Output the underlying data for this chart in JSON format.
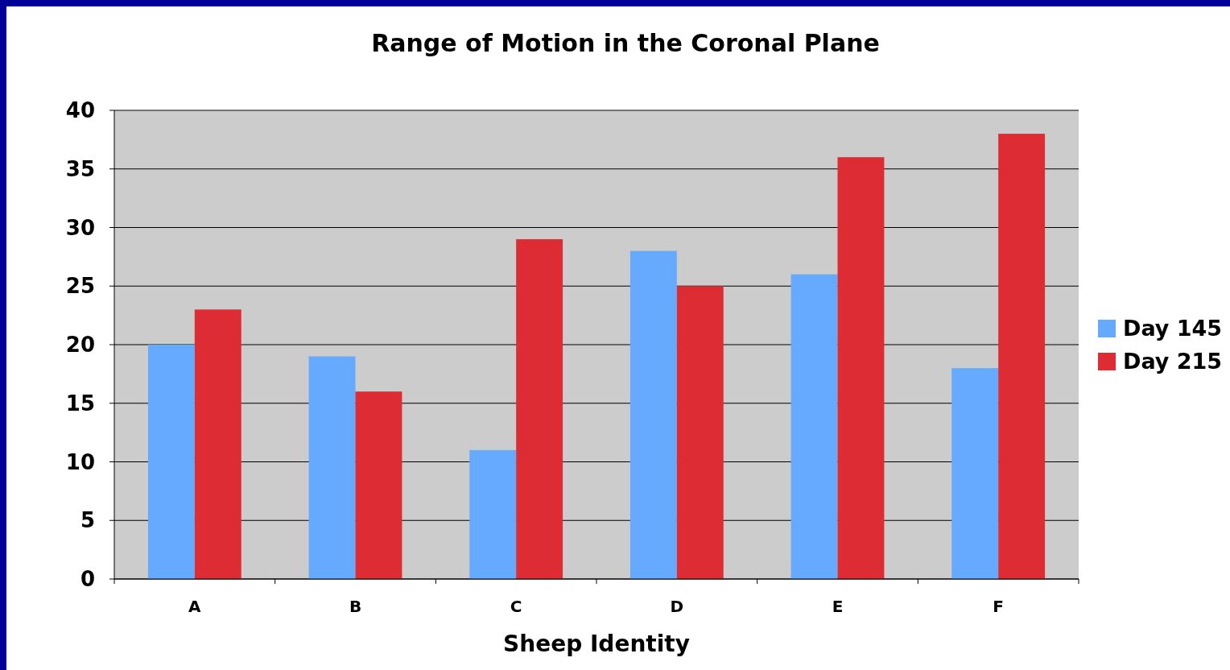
{
  "chart_data": {
    "type": "bar",
    "title": "Range of Motion in the Coronal Plane",
    "xlabel": "Sheep Identity",
    "categories": [
      "A",
      "B",
      "C",
      "D",
      "E",
      "F"
    ],
    "series": [
      {
        "name": "Day 145",
        "color": "#66aaff",
        "values": [
          20,
          19,
          11,
          28,
          26,
          18
        ]
      },
      {
        "name": "Day 215",
        "color": "#dd2c33",
        "values": [
          23,
          16,
          29,
          25,
          36,
          38
        ]
      }
    ],
    "ylim": [
      0,
      40
    ],
    "yticks": [
      0,
      5,
      10,
      15,
      20,
      25,
      30,
      35,
      40
    ],
    "grid": "y",
    "legend": "right"
  }
}
